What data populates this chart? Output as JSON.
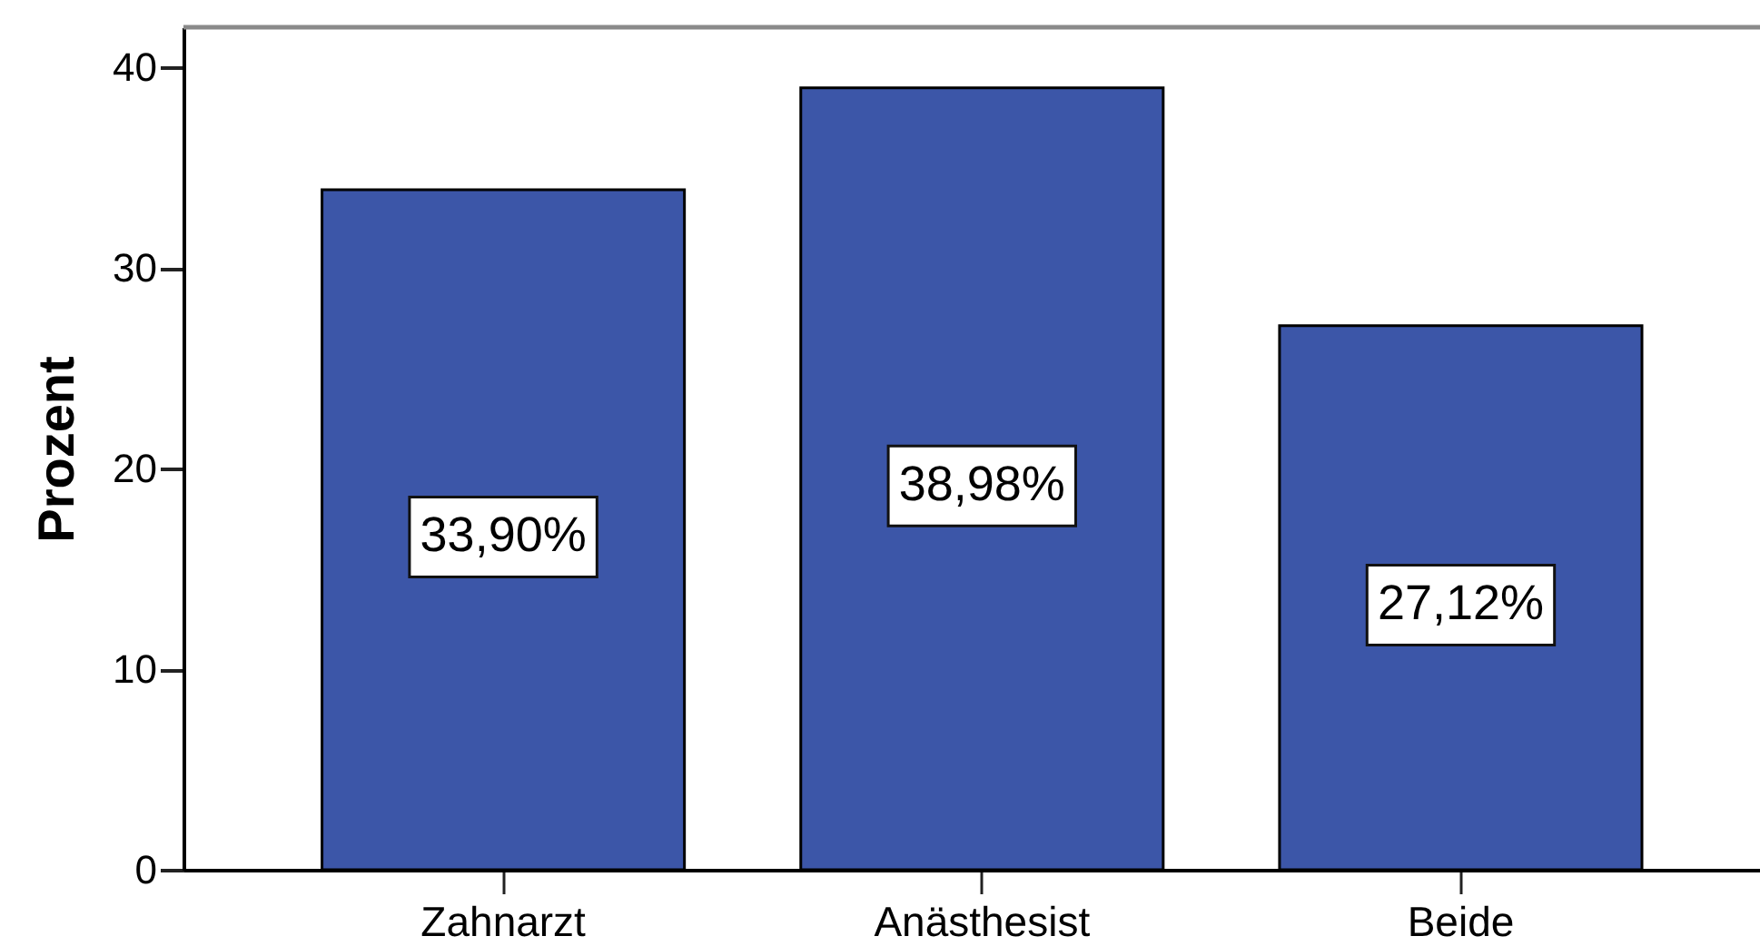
{
  "chart_data": {
    "type": "bar",
    "ylabel": "Prozent",
    "categories": [
      "Zahnarzt",
      "Anästhesist",
      "Beide"
    ],
    "values": [
      33.9,
      38.98,
      27.12
    ],
    "color": "#3c56a8",
    "value_labels": [
      "33,90%",
      "38,98%",
      "27,12%"
    ],
    "ylim": [
      0,
      42
    ],
    "yticks": [
      0,
      10,
      20,
      30,
      40
    ]
  }
}
